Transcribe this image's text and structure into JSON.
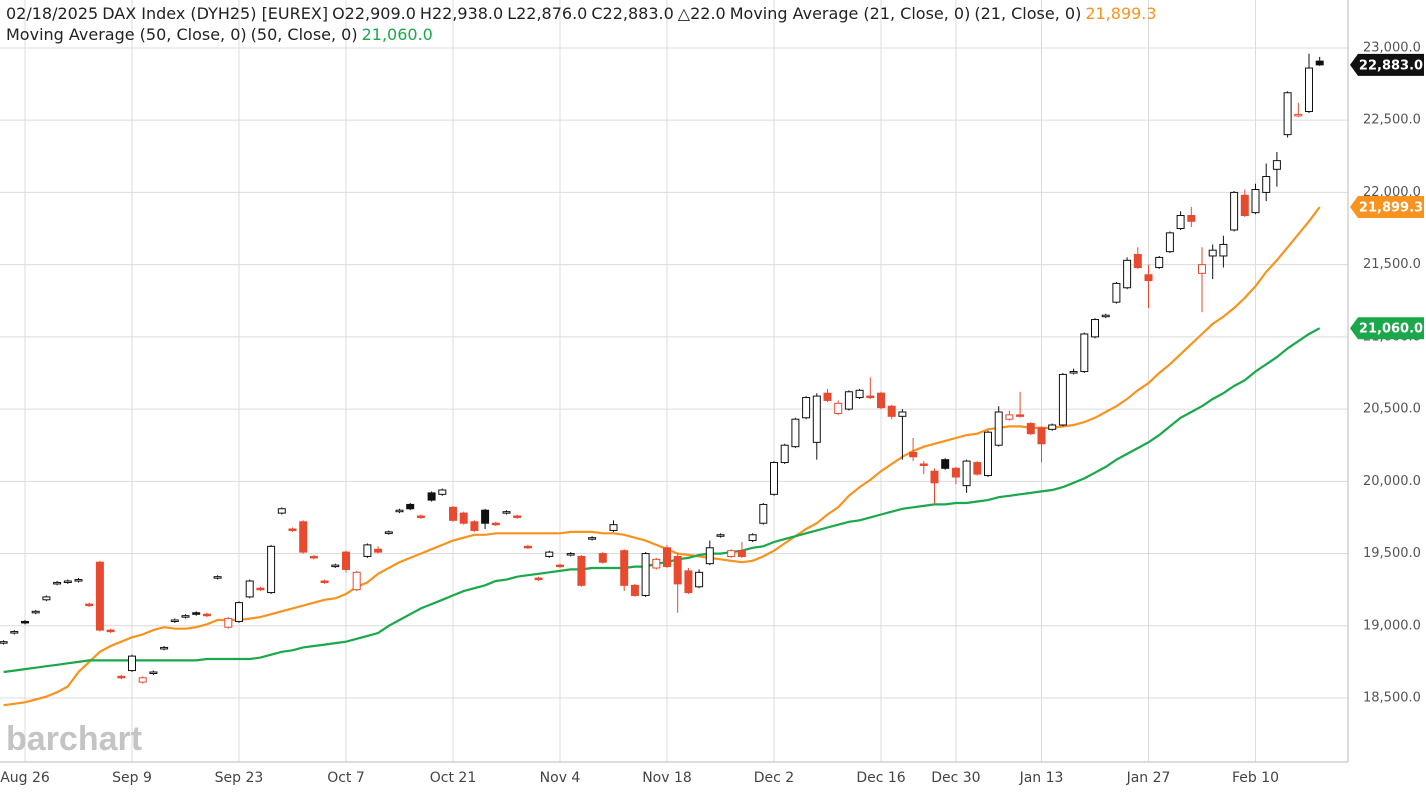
{
  "chart_data": {
    "type": "candlestick",
    "header": {
      "date": "02/18/2025",
      "symbol": "DAX Index (DYH25) [EUREX]",
      "ohlc": [
        "O22,909.0",
        "H22,938.0",
        "L22,876.0",
        "C22,883.0"
      ],
      "change": "△22.0"
    },
    "watermark": "barchart",
    "categories": [
      null,
      null,
      "Aug 26",
      null,
      null,
      null,
      null,
      null,
      null,
      null,
      null,
      null,
      "Sep 9",
      null,
      null,
      null,
      null,
      null,
      null,
      null,
      null,
      null,
      "Sep 23",
      null,
      null,
      null,
      null,
      null,
      null,
      null,
      null,
      null,
      "Oct 7",
      null,
      null,
      null,
      null,
      null,
      null,
      null,
      null,
      null,
      "Oct 21",
      null,
      null,
      null,
      null,
      null,
      null,
      null,
      null,
      null,
      "Nov 4",
      null,
      null,
      null,
      null,
      null,
      null,
      null,
      null,
      null,
      "Nov 18",
      null,
      null,
      null,
      null,
      null,
      null,
      null,
      null,
      null,
      "Dec 2",
      null,
      null,
      null,
      null,
      null,
      null,
      null,
      null,
      null,
      "Dec 16",
      null,
      null,
      null,
      null,
      null,
      null,
      "Dec 30",
      null,
      null,
      null,
      null,
      null,
      null,
      null,
      "Jan 13",
      null,
      null,
      null,
      null,
      null,
      null,
      null,
      null,
      null,
      "Jan 27",
      null,
      null,
      null,
      null,
      null,
      null,
      null,
      null,
      null,
      "Feb 10",
      null,
      null,
      null,
      null,
      null,
      null
    ],
    "open": [
      18880,
      18950,
      19030,
      19090,
      19180,
      19290,
      19300,
      19310,
      19150,
      19440,
      18970,
      18650,
      18690,
      18610,
      18670,
      18840,
      19030,
      19060,
      19090,
      19080,
      19330,
      18990,
      19030,
      19200,
      19260,
      19230,
      19780,
      19670,
      19720,
      19480,
      19310,
      19410,
      19510,
      19250,
      19480,
      19530,
      19640,
      19790,
      19840,
      19760,
      19920,
      19910,
      19820,
      19780,
      19720,
      19800,
      19710,
      19780,
      19760,
      19550,
      19330,
      19480,
      19420,
      19490,
      19480,
      19600,
      19500,
      19660,
      19520,
      19280,
      19210,
      19400,
      19540,
      19480,
      19380,
      19270,
      19430,
      19620,
      19480,
      19520,
      19590,
      19710,
      19910,
      20130,
      20240,
      20440,
      20270,
      20610,
      20470,
      20500,
      20580,
      20590,
      20610,
      20520,
      20450,
      20200,
      20120,
      20070,
      20150,
      20090,
      19970,
      20130,
      20040,
      20250,
      20430,
      20460,
      20400,
      20370,
      20360,
      20390,
      20750,
      20760,
      21000,
      21140,
      21240,
      21340,
      21570,
      21430,
      21480,
      21590,
      21750,
      21840,
      21440,
      21560,
      21560,
      21740,
      21980,
      21860,
      22000,
      22160,
      22400,
      22530,
      22560,
      22909
    ],
    "high": [
      18900,
      18970,
      19040,
      19110,
      19210,
      19310,
      19320,
      19330,
      19160,
      19450,
      18980,
      18660,
      18800,
      18650,
      18690,
      18860,
      19050,
      19080,
      19100,
      19090,
      19350,
      19060,
      19170,
      19320,
      19270,
      19560,
      19820,
      19680,
      19730,
      19490,
      19320,
      19430,
      19520,
      19380,
      19570,
      19550,
      19660,
      19810,
      19850,
      19770,
      19930,
      19950,
      19830,
      19790,
      19730,
      19810,
      19720,
      19800,
      19770,
      19560,
      19340,
      19520,
      19430,
      19510,
      19490,
      19620,
      19510,
      19730,
      19530,
      19290,
      19510,
      19470,
      19560,
      19500,
      19400,
      19390,
      19590,
      19640,
      19530,
      19580,
      19640,
      19850,
      20140,
      20260,
      20440,
      20590,
      20610,
      20640,
      20560,
      20630,
      20640,
      20720,
      20620,
      20530,
      20500,
      20300,
      20140,
      20090,
      20160,
      20100,
      20150,
      20140,
      20350,
      20520,
      20490,
      20620,
      20410,
      20380,
      20400,
      20750,
      20780,
      21030,
      21130,
      21160,
      21380,
      21550,
      21620,
      21500,
      21560,
      21730,
      21870,
      21900,
      21620,
      21640,
      21700,
      22010,
      22020,
      22060,
      22200,
      22280,
      22700,
      22620,
      22960,
      22938
    ],
    "low": [
      18870,
      18940,
      19010,
      19080,
      19170,
      19280,
      19290,
      19300,
      19130,
      18960,
      18950,
      18630,
      18680,
      18600,
      18660,
      18830,
      19020,
      19050,
      19070,
      19060,
      19320,
      18980,
      19020,
      19190,
      19240,
      19220,
      19770,
      19650,
      19500,
      19460,
      19290,
      19400,
      19370,
      19240,
      19470,
      19500,
      19630,
      19780,
      19800,
      19740,
      19860,
      19900,
      19720,
      19700,
      19650,
      19670,
      19690,
      19770,
      19740,
      19530,
      19310,
      19470,
      19400,
      19480,
      19270,
      19590,
      19430,
      19650,
      19240,
      19200,
      19200,
      19390,
      19400,
      19090,
      19220,
      19260,
      19420,
      19610,
      19470,
      19470,
      19580,
      19700,
      19900,
      20120,
      20230,
      20430,
      20150,
      20550,
      20460,
      20490,
      20570,
      20570,
      20500,
      20430,
      20150,
      20140,
      20050,
      19840,
      20080,
      19980,
      19920,
      20040,
      20030,
      20240,
      20420,
      20440,
      20320,
      20130,
      20350,
      20380,
      20740,
      20750,
      20990,
      21130,
      21230,
      21330,
      21470,
      21200,
      21470,
      21580,
      21740,
      21760,
      21170,
      21400,
      21480,
      21730,
      21830,
      21850,
      21940,
      22040,
      22380,
      22520,
      22550,
      22876
    ],
    "close": [
      18890,
      18960,
      19020,
      19100,
      19200,
      19300,
      19310,
      19320,
      19140,
      18970,
      18960,
      18640,
      18790,
      18640,
      18680,
      18850,
      19040,
      19070,
      19080,
      19070,
      19340,
      19050,
      19160,
      19310,
      19250,
      19550,
      19810,
      19660,
      19510,
      19470,
      19300,
      19420,
      19390,
      19370,
      19560,
      19510,
      19650,
      19800,
      19810,
      19750,
      19870,
      19940,
      19730,
      19710,
      19660,
      19710,
      19700,
      19790,
      19750,
      19540,
      19320,
      19510,
      19410,
      19500,
      19280,
      19610,
      19440,
      19700,
      19280,
      19210,
      19500,
      19460,
      19410,
      19290,
      19230,
      19370,
      19540,
      19630,
      19520,
      19480,
      19630,
      19840,
      20130,
      20250,
      20430,
      20580,
      20590,
      20560,
      20540,
      20620,
      20630,
      20580,
      20510,
      20450,
      20480,
      20170,
      20110,
      19990,
      20090,
      20030,
      20140,
      20050,
      20340,
      20480,
      20460,
      20450,
      20330,
      20260,
      20390,
      20740,
      20760,
      21020,
      21120,
      21150,
      21370,
      21530,
      21480,
      21390,
      21550,
      21720,
      21840,
      21800,
      21500,
      21600,
      21640,
      22000,
      21840,
      22020,
      22110,
      22220,
      22690,
      22540,
      22861,
      22883
    ],
    "last_label": "22,883.0",
    "up_color": "#111111",
    "down_color": "#e84a2f",
    "series": [
      {
        "name": "Moving Average (21, Close, 0)",
        "params": "(21, Close, 0)",
        "color": "#f7931e",
        "last_label": "21,899.3",
        "values": [
          18450,
          18460,
          18470,
          18490,
          18510,
          18540,
          18580,
          18680,
          18750,
          18820,
          18860,
          18890,
          18920,
          18940,
          18970,
          18990,
          18980,
          18980,
          18990,
          19010,
          19040,
          19040,
          19040,
          19050,
          19060,
          19080,
          19100,
          19120,
          19140,
          19160,
          19180,
          19190,
          19220,
          19270,
          19300,
          19360,
          19400,
          19440,
          19470,
          19500,
          19530,
          19560,
          19590,
          19610,
          19630,
          19630,
          19640,
          19640,
          19640,
          19640,
          19640,
          19640,
          19640,
          19650,
          19650,
          19650,
          19640,
          19640,
          19630,
          19610,
          19590,
          19560,
          19530,
          19500,
          19490,
          19480,
          19470,
          19460,
          19450,
          19440,
          19450,
          19480,
          19520,
          19570,
          19620,
          19670,
          19710,
          19770,
          19820,
          19900,
          19960,
          20010,
          20070,
          20120,
          20170,
          20210,
          20240,
          20260,
          20280,
          20300,
          20320,
          20330,
          20360,
          20370,
          20380,
          20380,
          20370,
          20370,
          20370,
          20380,
          20390,
          20410,
          20440,
          20480,
          20520,
          20570,
          20630,
          20680,
          20750,
          20810,
          20880,
          20950,
          21020,
          21090,
          21140,
          21200,
          21270,
          21350,
          21450,
          21530,
          21620,
          21710,
          21800,
          21899.3
        ]
      },
      {
        "name": "Moving Average (50, Close, 0)",
        "params": "(50, Close, 0)",
        "color": "#1aa84a",
        "last_label": "21,060.0",
        "values": [
          18680,
          18690,
          18700,
          18710,
          18720,
          18730,
          18740,
          18750,
          18760,
          18760,
          18760,
          18760,
          18760,
          18760,
          18760,
          18760,
          18760,
          18760,
          18760,
          18770,
          18770,
          18770,
          18770,
          18770,
          18780,
          18800,
          18820,
          18830,
          18850,
          18860,
          18870,
          18880,
          18890,
          18910,
          18930,
          18950,
          19000,
          19040,
          19080,
          19120,
          19150,
          19180,
          19210,
          19240,
          19260,
          19280,
          19310,
          19320,
          19340,
          19350,
          19360,
          19370,
          19380,
          19390,
          19390,
          19400,
          19400,
          19400,
          19400,
          19410,
          19410,
          19430,
          19440,
          19460,
          19470,
          19490,
          19500,
          19500,
          19510,
          19520,
          19540,
          19550,
          19580,
          19600,
          19620,
          19640,
          19660,
          19680,
          19700,
          19720,
          19730,
          19750,
          19770,
          19790,
          19810,
          19820,
          19830,
          19840,
          19840,
          19850,
          19850,
          19860,
          19870,
          19890,
          19900,
          19910,
          19920,
          19930,
          19940,
          19960,
          19990,
          20020,
          20060,
          20100,
          20150,
          20190,
          20230,
          20270,
          20320,
          20380,
          20440,
          20480,
          20520,
          20570,
          20610,
          20660,
          20700,
          20760,
          20810,
          20860,
          20920,
          20970,
          21020,
          21060
        ]
      }
    ],
    "ylim": [
      18057,
      23332
    ],
    "yticks": [
      {
        "value": 18500,
        "label": "18,500.0"
      },
      {
        "value": 19000,
        "label": "19,000.0"
      },
      {
        "value": 19500,
        "label": "19,500.0"
      },
      {
        "value": 20000,
        "label": "20,000.0"
      },
      {
        "value": 20500,
        "label": "20,500.0"
      },
      {
        "value": 21000,
        "label": "21,000.0"
      },
      {
        "value": 21500,
        "label": "21,500.0"
      },
      {
        "value": 22000,
        "label": "22,000.0"
      },
      {
        "value": 22500,
        "label": "22,500.0"
      },
      {
        "value": 23000,
        "label": "23,000.0"
      }
    ],
    "grid": true
  }
}
